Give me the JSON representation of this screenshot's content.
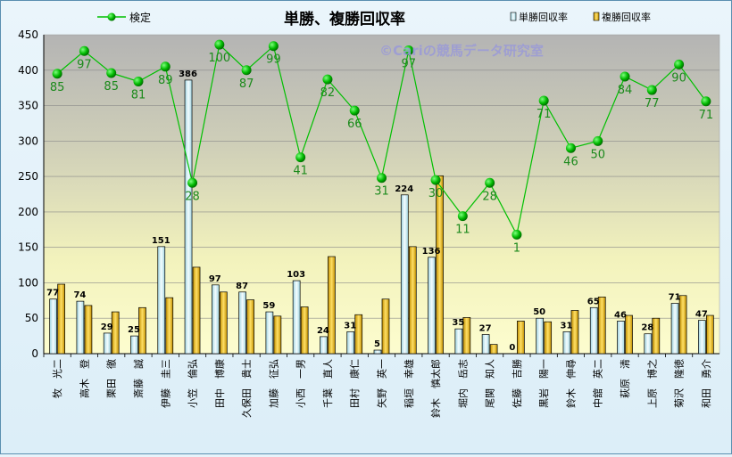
{
  "chart_data": {
    "type": "bar",
    "title": "単勝、複勝回収率",
    "watermark": "©Cariの競馬データ研究室",
    "ylim": [
      0,
      450
    ],
    "yticks": [
      0,
      50,
      100,
      150,
      200,
      250,
      300,
      350,
      400,
      450
    ],
    "grid": true,
    "legend_position": "top",
    "categories": [
      "牧　光二",
      "高木　登",
      "栗田　徹",
      "斎藤　誠",
      "伊藤　圭三",
      "小笠　倫弘",
      "田中　博康",
      "久保田　貴士",
      "加藤　征弘",
      "小西　一男",
      "千葉　直人",
      "田村　康仁",
      "矢野　英一",
      "稲垣　幸雄",
      "鈴木　慎太郎",
      "堀内　岳志",
      "尾関　知人",
      "佐藤　吉勝",
      "黒岩　陽一",
      "鈴木　伸尋",
      "中舘　英二",
      "萩原　清",
      "上原　博之",
      "菊沢　隆徳",
      "和田　勇介"
    ],
    "series": [
      {
        "name": "単勝回収率",
        "type": "bar",
        "color": "#c9ecf3",
        "values": [
          77,
          74,
          29,
          25,
          151,
          386,
          97,
          87,
          59,
          103,
          24,
          31,
          5,
          224,
          136,
          35,
          27,
          0,
          50,
          31,
          65,
          46,
          28,
          71,
          47
        ]
      },
      {
        "name": "複勝回収率",
        "type": "bar",
        "color": "#e6b20f",
        "values": [
          98,
          68,
          59,
          65,
          79,
          122,
          87,
          76,
          53,
          66,
          137,
          55,
          77,
          151,
          251,
          51,
          13,
          46,
          45,
          61,
          80,
          54,
          50,
          82,
          54
        ]
      },
      {
        "name": "検定",
        "type": "line",
        "color": "#00a000",
        "values": [
          85,
          97,
          85,
          81,
          89,
          28,
          100,
          87,
          99,
          41,
          82,
          66,
          31,
          97,
          30,
          11,
          28,
          1,
          71,
          46,
          50,
          84,
          77,
          90,
          71
        ]
      }
    ],
    "line_y": [
      395,
      427,
      396,
      384,
      405,
      241,
      436,
      400,
      434,
      277,
      387,
      343,
      248,
      428,
      245,
      194,
      241,
      168,
      357,
      290,
      300,
      391,
      372,
      408,
      356
    ]
  }
}
